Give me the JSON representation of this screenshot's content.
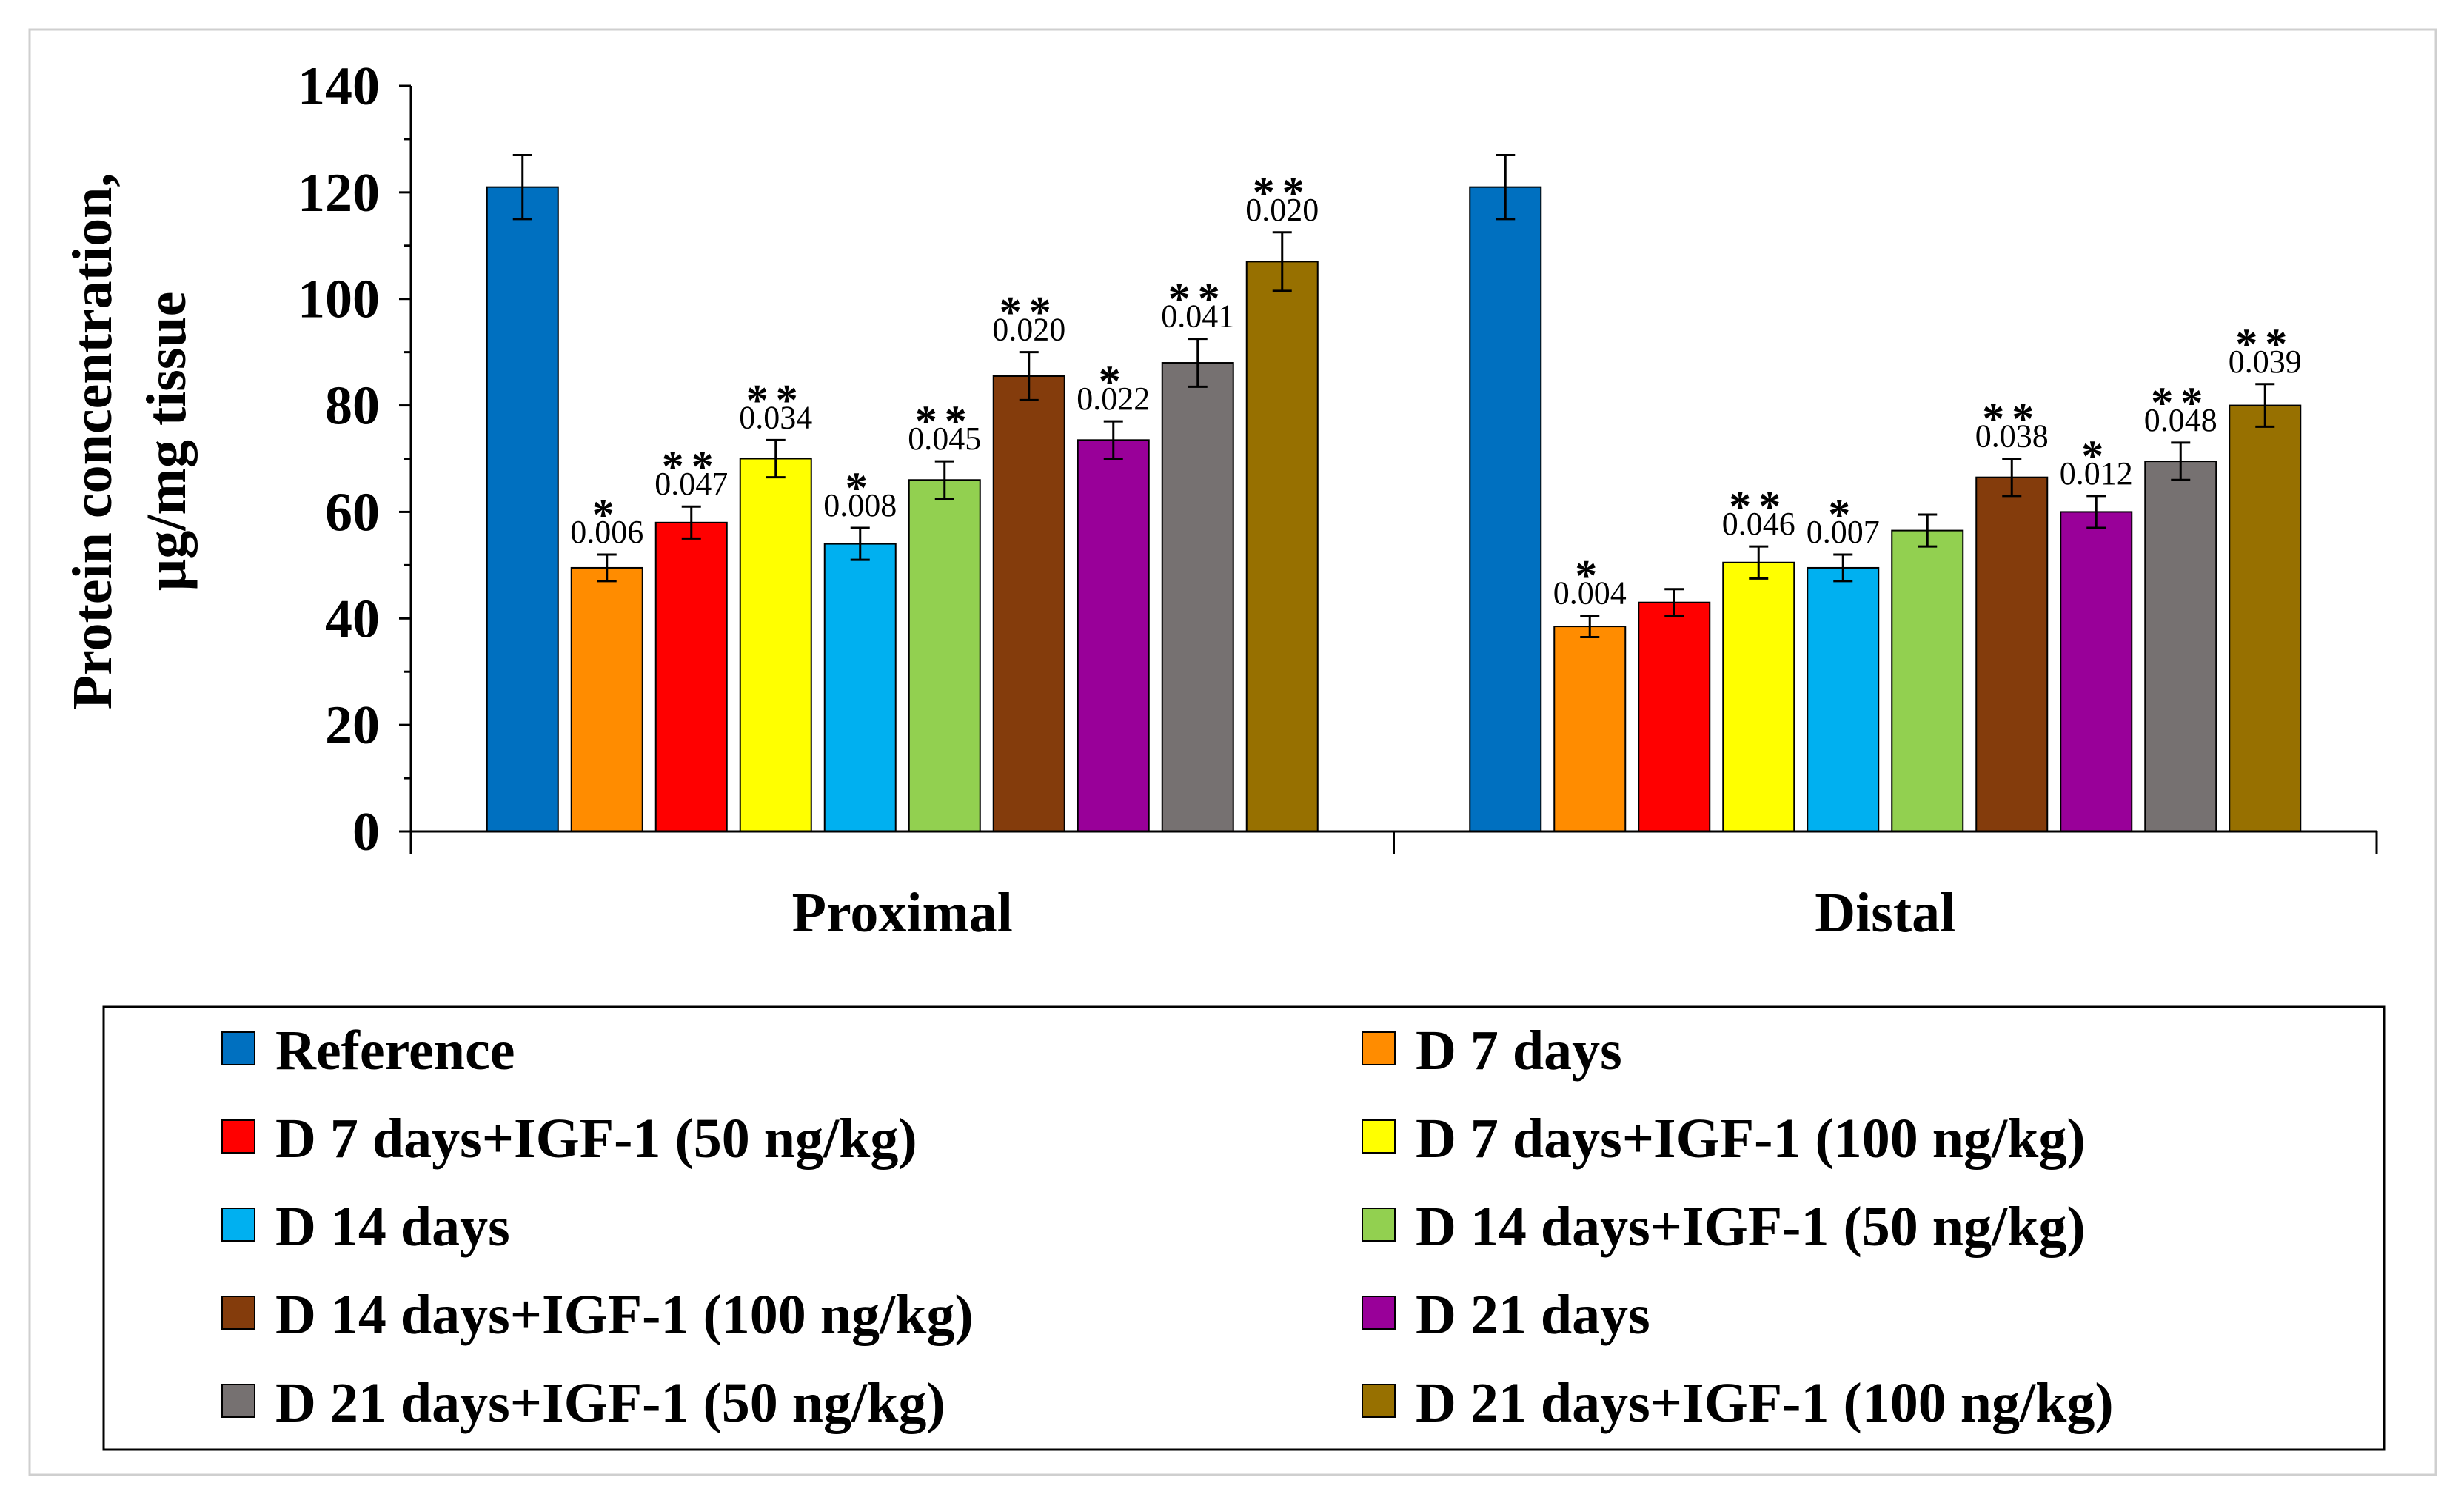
{
  "chart_data": {
    "type": "bar",
    "title": "",
    "xlabel": "",
    "ylabel": [
      "Protein concentration,",
      "µg/mg tissue"
    ],
    "ylim": [
      0,
      140
    ],
    "yticks": [
      "0",
      "20",
      "40",
      "60",
      "80",
      "100",
      "120",
      "140"
    ],
    "categories": [
      "Proximal",
      "Distal"
    ],
    "series": [
      {
        "name": "Reference",
        "color": "#0070C0",
        "values": [
          121,
          121
        ],
        "errors": [
          6,
          6
        ],
        "stars": [
          "",
          ""
        ],
        "pvalues": [
          "",
          ""
        ]
      },
      {
        "name": "D 7 days",
        "color": "#FF8C00",
        "values": [
          49.5,
          38.5
        ],
        "errors": [
          2.5,
          2
        ],
        "stars": [
          "*",
          "*"
        ],
        "pvalues": [
          "0.006",
          "0.004"
        ]
      },
      {
        "name": "D 7 days+IGF-1 (50 ng/kg)",
        "color": "#FF0000",
        "values": [
          58,
          43
        ],
        "errors": [
          3,
          2.5
        ],
        "stars": [
          "**",
          ""
        ],
        "pvalues": [
          "0.047",
          ""
        ]
      },
      {
        "name": "D 7 days+IGF-1 (100 ng/kg)",
        "color": "#FFFF00",
        "values": [
          70,
          50.5
        ],
        "errors": [
          3.5,
          3
        ],
        "stars": [
          "**",
          "**"
        ],
        "pvalues": [
          "0.034",
          "0.046"
        ]
      },
      {
        "name": "D 14 days",
        "color": "#00B0F0",
        "values": [
          54,
          49.5
        ],
        "errors": [
          3,
          2.5
        ],
        "stars": [
          "*",
          "*"
        ],
        "pvalues": [
          "0.008",
          "0.007"
        ]
      },
      {
        "name": "D 14 days+IGF-1 (50 ng/kg)",
        "color": "#92D050",
        "values": [
          66,
          56.5
        ],
        "errors": [
          3.5,
          3
        ],
        "stars": [
          "**",
          ""
        ],
        "pvalues": [
          "0.045",
          ""
        ]
      },
      {
        "name": "D 14 days+IGF-1 (100 ng/kg)",
        "color": "#843C0C",
        "values": [
          85.5,
          66.5
        ],
        "errors": [
          4.5,
          3.5
        ],
        "stars": [
          "**",
          "**"
        ],
        "pvalues": [
          "0.020",
          "0.038"
        ]
      },
      {
        "name": "D 21 days",
        "color": "#990099",
        "values": [
          73.5,
          60
        ],
        "errors": [
          3.5,
          3
        ],
        "stars": [
          "*",
          "*"
        ],
        "pvalues": [
          "0.022",
          "0.012"
        ]
      },
      {
        "name": "D 21 days+IGF-1 (50 ng/kg)",
        "color": "#767171",
        "values": [
          88,
          69.5
        ],
        "errors": [
          4.5,
          3.5
        ],
        "stars": [
          "**",
          "**"
        ],
        "pvalues": [
          "0.041",
          "0.048"
        ]
      },
      {
        "name": "D 21 days+IGF-1 (100 ng/kg)",
        "color": "#977000",
        "values": [
          107,
          80
        ],
        "errors": [
          5.5,
          4
        ],
        "stars": [
          "**",
          "**"
        ],
        "pvalues": [
          "0.020",
          "0.039"
        ]
      }
    ],
    "grid": false,
    "legend_position": "bottom"
  }
}
